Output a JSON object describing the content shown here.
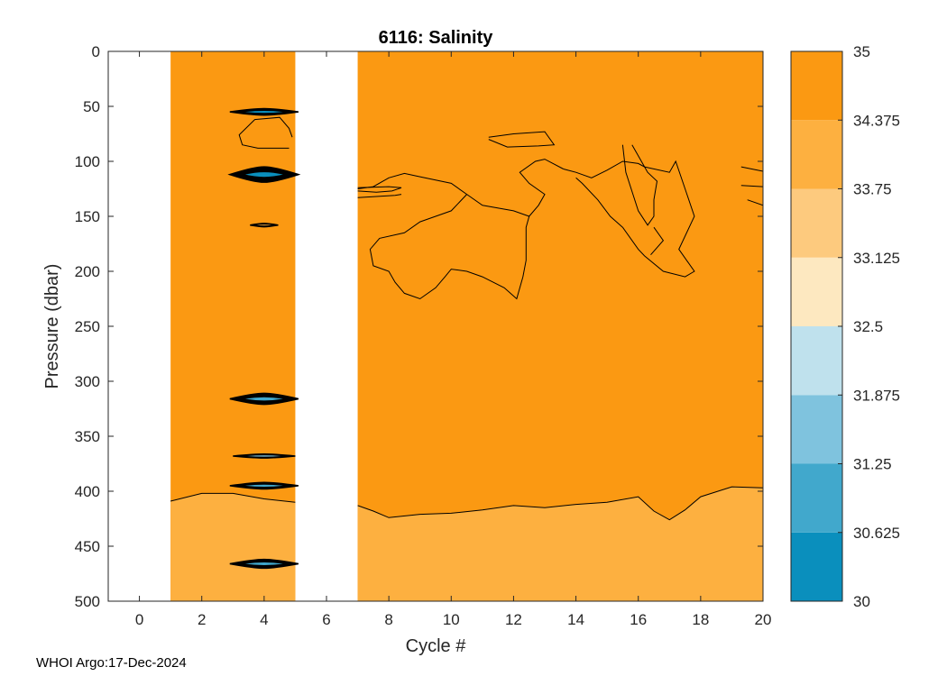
{
  "chart_data": {
    "type": "contour",
    "title": "6116:  Salinity",
    "xlabel": "Cycle #",
    "ylabel": "Pressure (dbar)",
    "xlim": [
      -1,
      20
    ],
    "ylim": [
      0,
      500
    ],
    "y_reversed": true,
    "x_ticks": [
      0,
      2,
      4,
      6,
      8,
      10,
      12,
      14,
      16,
      18,
      20
    ],
    "y_ticks": [
      0,
      50,
      100,
      150,
      200,
      250,
      300,
      350,
      400,
      450,
      500
    ],
    "data_columns": [
      [
        1,
        5
      ],
      [
        7,
        20
      ]
    ],
    "background_fill_value": 35,
    "lower_layer": {
      "value": 34.0,
      "boundary_segments": [
        [
          [
            1,
            409
          ],
          [
            2,
            402
          ],
          [
            3,
            402
          ],
          [
            4,
            407
          ],
          [
            5,
            410
          ]
        ],
        [
          [
            7,
            413
          ],
          [
            7.5,
            418
          ],
          [
            8,
            424
          ],
          [
            9,
            421
          ],
          [
            10,
            420
          ],
          [
            11,
            417
          ],
          [
            12,
            413
          ],
          [
            13,
            415
          ],
          [
            14,
            412
          ],
          [
            15,
            410
          ],
          [
            16,
            405
          ],
          [
            16.5,
            418
          ],
          [
            17,
            426
          ],
          [
            17.5,
            417
          ],
          [
            18,
            405
          ],
          [
            19,
            396
          ],
          [
            20,
            397
          ]
        ]
      ]
    },
    "fresh_lenses": [
      {
        "cycle": 4,
        "pressure": 55,
        "half_width": 1.1,
        "half_height": 3,
        "value": 30.6
      },
      {
        "cycle": 4,
        "pressure": 112,
        "half_width": 1.1,
        "half_height": 7,
        "value": 30.3
      },
      {
        "cycle": 4,
        "pressure": 158,
        "half_width": 0.45,
        "half_height": 1.5,
        "value": 33.8
      },
      {
        "cycle": 4,
        "pressure": 316,
        "half_width": 1.1,
        "half_height": 5,
        "value": 30.8
      },
      {
        "cycle": 4,
        "pressure": 368,
        "half_width": 1.0,
        "half_height": 1.8,
        "value": 31.5
      },
      {
        "cycle": 4,
        "pressure": 395,
        "half_width": 1.1,
        "half_height": 3,
        "value": 30.9
      },
      {
        "cycle": 4,
        "pressure": 466,
        "half_width": 1.1,
        "half_height": 4,
        "value": 30.7
      }
    ],
    "contour_lines": [
      [
        [
          7,
          125
        ],
        [
          7.5,
          123
        ],
        [
          8,
          115
        ],
        [
          8.5,
          111
        ],
        [
          9,
          114
        ],
        [
          10,
          120
        ],
        [
          10.5,
          130
        ],
        [
          11,
          140
        ],
        [
          12,
          145
        ],
        [
          12.5,
          150
        ],
        [
          12.8,
          140
        ],
        [
          13,
          130
        ],
        [
          12.5,
          120
        ],
        [
          12.2,
          110
        ],
        [
          12.7,
          100
        ],
        [
          13,
          98
        ],
        [
          13.6,
          107
        ]
      ],
      [
        [
          13.6,
          107
        ],
        [
          14,
          110
        ],
        [
          14.5,
          115
        ],
        [
          15,
          108
        ],
        [
          15.5,
          100
        ],
        [
          16,
          102
        ],
        [
          16.2,
          105
        ],
        [
          17,
          110
        ],
        [
          17.2,
          100
        ],
        [
          17.5,
          125
        ],
        [
          17.8,
          150
        ],
        [
          17.3,
          180
        ],
        [
          17.8,
          200
        ],
        [
          17.5,
          205
        ],
        [
          16.8,
          200
        ],
        [
          16.2,
          186
        ],
        [
          16,
          180
        ],
        [
          15.5,
          160
        ]
      ],
      [
        [
          12.5,
          150
        ],
        [
          12.4,
          160
        ],
        [
          12.4,
          190
        ],
        [
          12.3,
          205
        ],
        [
          12.1,
          225
        ],
        [
          11.7,
          215
        ],
        [
          11,
          205
        ],
        [
          10.5,
          200
        ],
        [
          10,
          198
        ],
        [
          9.8,
          205
        ],
        [
          9.5,
          215
        ],
        [
          9,
          225
        ],
        [
          8.5,
          220
        ],
        [
          8.2,
          210
        ],
        [
          8,
          200
        ],
        [
          7.5,
          195
        ],
        [
          7.4,
          180
        ],
        [
          7.7,
          170
        ],
        [
          8.5,
          165
        ],
        [
          9,
          155
        ],
        [
          9.5,
          150
        ],
        [
          10,
          145
        ],
        [
          10.5,
          130
        ]
      ],
      [
        [
          15.5,
          160
        ],
        [
          15.1,
          150
        ],
        [
          14.7,
          135
        ],
        [
          14.2,
          120
        ],
        [
          14,
          115
        ]
      ],
      [
        [
          7,
          124
        ],
        [
          8,
          123
        ],
        [
          8.4,
          124
        ],
        [
          8.1,
          127
        ],
        [
          7.6,
          128
        ],
        [
          7,
          127
        ]
      ],
      [
        [
          7,
          133
        ],
        [
          8.2,
          131
        ],
        [
          8.4,
          130
        ]
      ],
      [
        [
          11.2,
          78
        ],
        [
          12,
          75
        ],
        [
          13,
          73
        ],
        [
          13.3,
          85
        ],
        [
          12.8,
          86
        ],
        [
          11.8,
          87
        ],
        [
          11.2,
          80
        ]
      ],
      [
        [
          4.8,
          88
        ],
        [
          3.8,
          88
        ],
        [
          3.3,
          85
        ],
        [
          3.2,
          76
        ],
        [
          3.7,
          62
        ],
        [
          4.5,
          60
        ],
        [
          4.8,
          70
        ],
        [
          4.9,
          78
        ]
      ],
      [
        [
          15.5,
          85
        ],
        [
          15.6,
          110
        ],
        [
          16.0,
          145
        ],
        [
          16.3,
          158
        ],
        [
          16.5,
          150
        ],
        [
          16.5,
          135
        ],
        [
          16.6,
          118
        ],
        [
          16.3,
          110
        ],
        [
          16.0,
          95
        ],
        [
          15.8,
          85
        ]
      ],
      [
        [
          16.5,
          160
        ],
        [
          16.8,
          172
        ],
        [
          16.4,
          185
        ]
      ],
      [
        [
          19.3,
          105
        ],
        [
          20,
          109
        ]
      ],
      [
        [
          19.3,
          122
        ],
        [
          20,
          123
        ]
      ],
      [
        [
          19.5,
          135
        ],
        [
          20,
          140
        ]
      ]
    ],
    "colorbar": {
      "levels": [
        30,
        30.625,
        31.25,
        31.875,
        32.5,
        33.125,
        33.75,
        34.375,
        35
      ],
      "tick_labels": [
        "30",
        "30.625",
        "31.25",
        "31.875",
        "32.5",
        "33.125",
        "33.75",
        "34.375",
        "35"
      ],
      "colors": [
        "#0a8fbd",
        "#41a8cc",
        "#7fc3de",
        "#bfe1ed",
        "#fde8c0",
        "#fdca7e",
        "#fdb040",
        "#fb9912"
      ]
    },
    "footer": "WHOI Argo:17-Dec-2024"
  }
}
